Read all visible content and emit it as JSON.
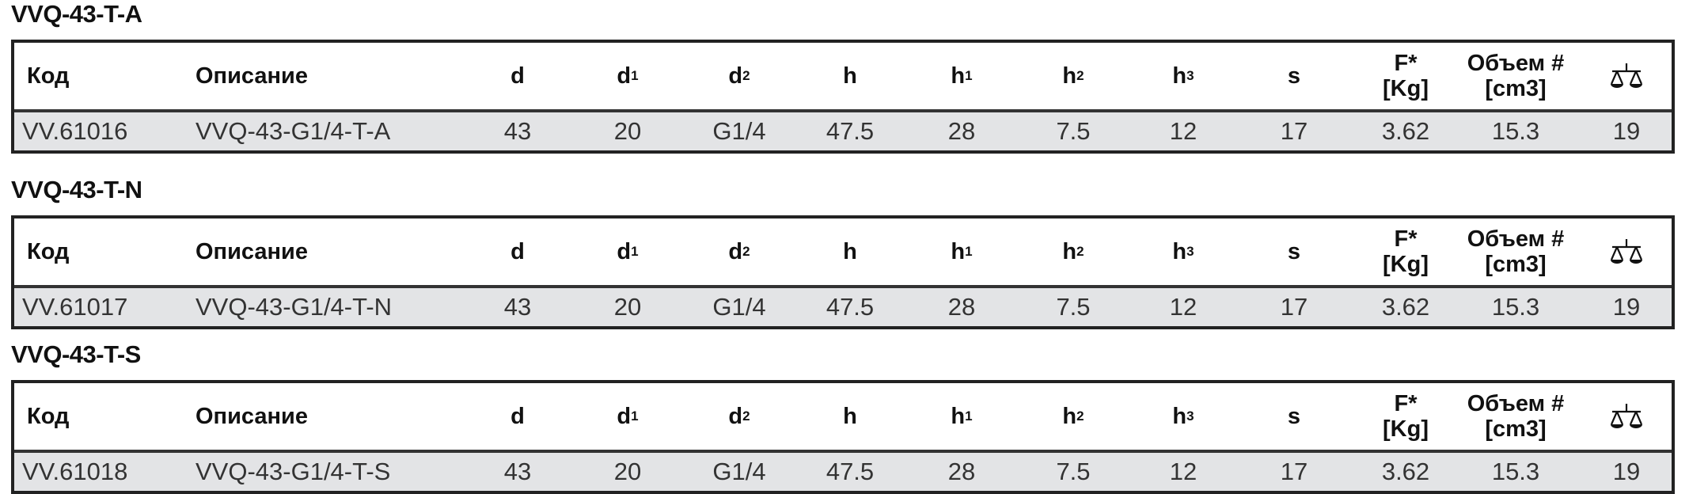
{
  "headers": {
    "code": "Код",
    "desc": "Описание",
    "d": "d",
    "d1": "d",
    "d1_sub": "1",
    "d2": "d",
    "d2_sub": "2",
    "h": "h",
    "h1": "h",
    "h1_sub": "1",
    "h2": "h",
    "h2_sub": "2",
    "h3": "h",
    "h3_sub": "3",
    "s": "s",
    "F_line1": "F*",
    "F_line2": "[Kg]",
    "vol_line1": "Объем #",
    "vol_line2": "[cm3]",
    "weight_icon": "balance-scale-icon"
  },
  "sections": [
    {
      "title": "VVQ-43-T-A",
      "row": {
        "code": "VV.61016",
        "desc": "VVQ-43-G1/4-T-A",
        "d": "43",
        "d1": "20",
        "d2": "G1/4",
        "h": "47.5",
        "h1": "28",
        "h2": "7.5",
        "h3": "12",
        "s": "17",
        "F": "3.62",
        "vol": "15.3",
        "weight": "19"
      }
    },
    {
      "title": "VVQ-43-T-N",
      "row": {
        "code": "VV.61017",
        "desc": "VVQ-43-G1/4-T-N",
        "d": "43",
        "d1": "20",
        "d2": "G1/4",
        "h": "47.5",
        "h1": "28",
        "h2": "7.5",
        "h3": "12",
        "s": "17",
        "F": "3.62",
        "vol": "15.3",
        "weight": "19"
      }
    },
    {
      "title": "VVQ-43-T-S",
      "row": {
        "code": "VV.61018",
        "desc": "VVQ-43-G1/4-T-S",
        "d": "43",
        "d1": "20",
        "d2": "G1/4",
        "h": "47.5",
        "h1": "28",
        "h2": "7.5",
        "h3": "12",
        "s": "17",
        "F": "3.62",
        "vol": "15.3",
        "weight": "19"
      }
    }
  ]
}
